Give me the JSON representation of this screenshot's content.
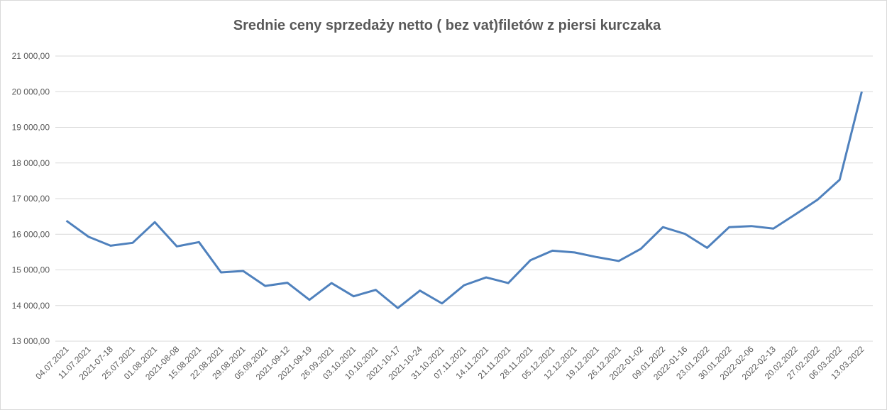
{
  "chart_data": {
    "type": "line",
    "title": "Srednie ceny sprzedaży netto ( bez vat)filetów z piersi kurczaka",
    "categories": [
      "04.07.2021",
      "11.07.2021",
      "2021-07-18",
      "25.07.2021",
      "01.08.2021",
      "2021-08-08",
      "15.08.2021",
      "22.08.2021",
      "29.08.2021",
      "05.09.2021",
      "2021-09-12",
      "2021-09-19",
      "26.09.2021",
      "03.10.2021",
      "10.10.2021",
      "2021-10-17",
      "2021-10-24",
      "31.10.2021",
      "07.11.2021",
      "14.11.2021",
      "21.11.2021",
      "28.11.2021",
      "05.12.2021",
      "12.12.2021",
      "19.12.2021",
      "26.12.2021",
      "2022-01-02",
      "09.01.2022",
      "2022-01-16",
      "23.01.2022",
      "30.01.2022",
      "2022-02-06",
      "2022-02-13",
      "20.02.2022",
      "27.02.2022",
      "06.03.2022",
      "13.03.2022"
    ],
    "series": [
      {
        "color": "#4f81bd",
        "values": [
          16380,
          15930,
          15680,
          15760,
          16340,
          15660,
          15780,
          14930,
          14970,
          14550,
          14640,
          14160,
          14630,
          14260,
          14440,
          13930,
          14420,
          14060,
          14570,
          14790,
          14630,
          15270,
          15540,
          15490,
          15360,
          15250,
          15590,
          16200,
          16010,
          15620,
          16200,
          16230,
          16160,
          16560,
          16970,
          17530,
          20000
        ]
      }
    ],
    "ylim": [
      13000,
      21000
    ],
    "yticks": [
      {
        "value": 13000,
        "label": "13 000,00"
      },
      {
        "value": 14000,
        "label": "14 000,00"
      },
      {
        "value": 15000,
        "label": "15 000,00"
      },
      {
        "value": 16000,
        "label": "16 000,00"
      },
      {
        "value": 17000,
        "label": "17 000,00"
      },
      {
        "value": 18000,
        "label": "18 000,00"
      },
      {
        "value": 19000,
        "label": "19 000,00"
      },
      {
        "value": 20000,
        "label": "20 000,00"
      },
      {
        "value": 21000,
        "label": "21 000,00"
      }
    ],
    "grid": true
  }
}
